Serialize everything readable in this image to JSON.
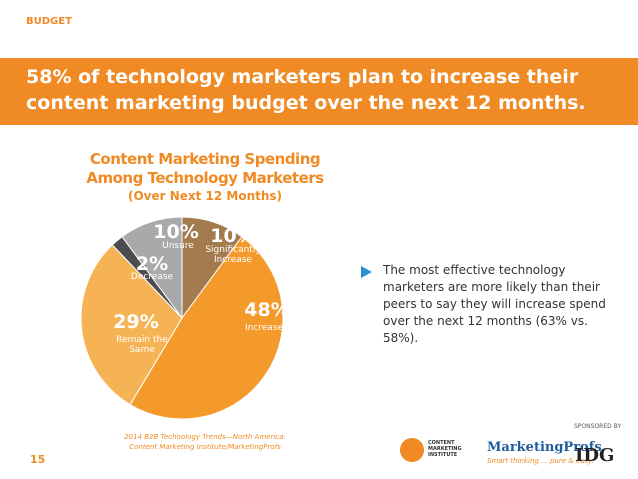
{
  "section": "BUDGET",
  "headline": "58% of technology marketers plan to increase their content marketing budget over the next 12 months.",
  "chart_data": {
    "type": "pie",
    "title": "Content Marketing Spending Among Technology Marketers",
    "subtitle": "(Over Next 12 Months)",
    "categories": [
      "Significantly Increase",
      "Increase",
      "Remain the Same",
      "Decrease",
      "Unsure"
    ],
    "values": [
      10,
      48,
      29,
      2,
      10
    ],
    "value_labels": [
      "10%",
      "48%",
      "29%",
      "2%",
      "10%"
    ],
    "colors": [
      "#a47a4f",
      "#f39a2b",
      "#f6b356",
      "#4d4d4f",
      "#a9a9ab"
    ]
  },
  "source": "2014 B2B Technology Trends—North America: Content Marketing Institute/MarketingProfs",
  "bullet": "The most effective technology marketers are more likely than their peers to say they will increase spend over the next 12 months (63% vs. 58%).",
  "page_number": "15",
  "sponsored_by": "SPONSORED BY",
  "logos": {
    "cmi": "CONTENT MARKETING INSTITUTE",
    "mp": "MarketingProfs",
    "mp_tagline": "Smart thinking ... pure & easy.",
    "idg": "IDG"
  }
}
